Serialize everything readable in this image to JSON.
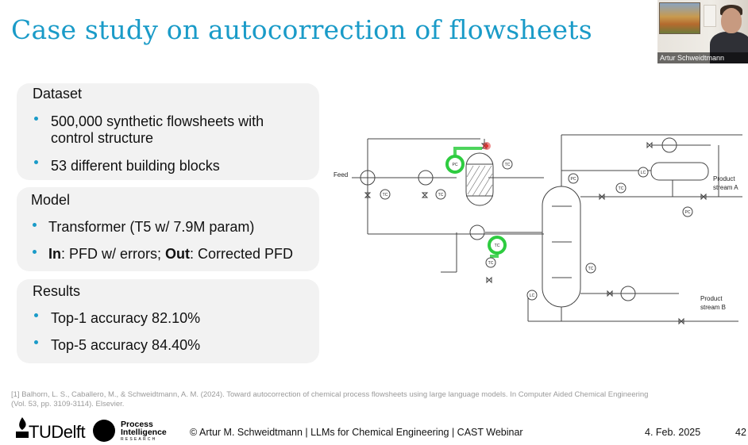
{
  "slide": {
    "title": "Case study on autocorrection of flowsheets",
    "presenter_name": "Artur Schweidtmann",
    "dataset": {
      "heading": "Dataset",
      "bullets": [
        "500,000 synthetic flowsheets with",
        "control structure",
        "53 different building blocks"
      ]
    },
    "model": {
      "heading": "Model",
      "bullet1": "Transformer (T5 w/ 7.9M param)",
      "bullet2_bold1": "In",
      "bullet2_text1": ": PFD w/ errors; ",
      "bullet2_bold2": "Out",
      "bullet2_text2": ": Corrected PFD"
    },
    "results": {
      "heading": "Results",
      "bullets": [
        "Top-1 accuracy 82.10%",
        "Top-5 accuracy 84.40%"
      ]
    },
    "diagram": {
      "feed": "Feed",
      "product_a_line1": "Product",
      "product_a_line2": "stream A",
      "product_b_line1": "Product",
      "product_b_line2": "stream B",
      "tags": {
        "pc": "PC",
        "tc": "TC",
        "lc": "LC"
      }
    },
    "reference_line1": "[1] Balhorn, L. S., Caballero, M., & Schweidtmann, A. M. (2024). Toward autocorrection of chemical process flowsheets using large language models. In Computer Aided Chemical Engineering",
    "reference_line2": "(Vol. 53, pp. 3109-3114). Elsevier.",
    "footer": {
      "logo_tu": "TUDelft",
      "logo_pir_line1": "Process",
      "logo_pir_line2": "Intelligence",
      "logo_pir_line3": "RESEARCH",
      "center": "© Artur M. Schweidtmann | LLMs for Chemical Engineering | CAST Webinar",
      "date": "4. Feb. 2025",
      "page": "42"
    },
    "colors": {
      "accent": "#1a9bc8",
      "highlight": "#2ecc40",
      "error": "#e03030"
    }
  }
}
